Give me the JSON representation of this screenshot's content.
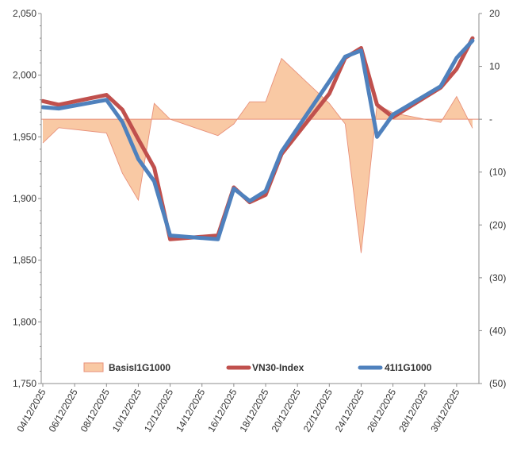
{
  "chart_data": {
    "type": "line",
    "x": [
      "04/12/2025",
      "05/12/2025",
      "08/12/2025",
      "09/12/2025",
      "10/12/2025",
      "11/12/2025",
      "12/12/2025",
      "15/12/2025",
      "16/12/2025",
      "17/12/2025",
      "18/12/2025",
      "19/12/2025",
      "22/12/2025",
      "23/12/2025",
      "24/12/2025",
      "25/12/2025",
      "26/12/2025",
      "29/12/2025",
      "30/12/2025",
      "31/12/2025"
    ],
    "x_ticks": [
      "04/12/2025",
      "06/12/2025",
      "08/12/2025",
      "10/12/2025",
      "12/12/2025",
      "14/12/2025",
      "16/12/2025",
      "18/12/2025",
      "20/12/2025",
      "22/12/2025",
      "24/12/2025",
      "26/12/2025",
      "28/12/2025",
      "30/12/2025"
    ],
    "y_left": {
      "ylim": [
        1750,
        2050
      ],
      "ticks": [
        1750,
        1800,
        1850,
        1900,
        1950,
        2000,
        2050
      ],
      "tick_labels": [
        "1,750",
        "1,800",
        "1,850",
        "1,900",
        "1,950",
        "2,000",
        "2,050"
      ]
    },
    "y_right": {
      "ylim": [
        -50,
        20
      ],
      "ticks": [
        20,
        10,
        0,
        -10,
        -20,
        -30,
        -40,
        -50
      ],
      "tick_labels": [
        "20",
        "10",
        "-",
        "(10)",
        "(20)",
        "(30)",
        "(40)",
        "(50)"
      ]
    },
    "series": [
      {
        "name": "BasisI1G1000",
        "axis": "right",
        "kind": "area",
        "color": "#f9c9a4",
        "stroke": "#e8907a",
        "values": [
          -4.5,
          -1.6,
          -2.6,
          -10.2,
          -15.3,
          3.0,
          0.0,
          -3.1,
          -0.9,
          3.3,
          3.3,
          11.5,
          3.0,
          -0.9,
          -25.3,
          2.8,
          1.2,
          -0.6,
          4.3,
          -1.7
        ]
      },
      {
        "name": "VN30-Index",
        "axis": "left",
        "kind": "line",
        "color": "#c0504d",
        "values": [
          1979,
          1976,
          1984,
          1972,
          1948,
          1925,
          1867,
          1870,
          1909,
          1897,
          1903,
          1936,
          1985,
          2014,
          2022,
          1976,
          1966,
          1990,
          2005,
          2030
        ]
      },
      {
        "name": "41I1G1000",
        "axis": "left",
        "kind": "line",
        "color": "#4f81bd",
        "values": [
          1974,
          1973,
          1980,
          1962,
          1932,
          1914,
          1870,
          1867,
          1908,
          1898,
          1906,
          1938,
          1995,
          2015,
          2020,
          1950,
          1968,
          1991,
          2014,
          2028
        ]
      }
    ],
    "legend": [
      "BasisI1G1000",
      "VN30-Index",
      "41I1G1000"
    ],
    "legend_position": "bottom-center"
  }
}
